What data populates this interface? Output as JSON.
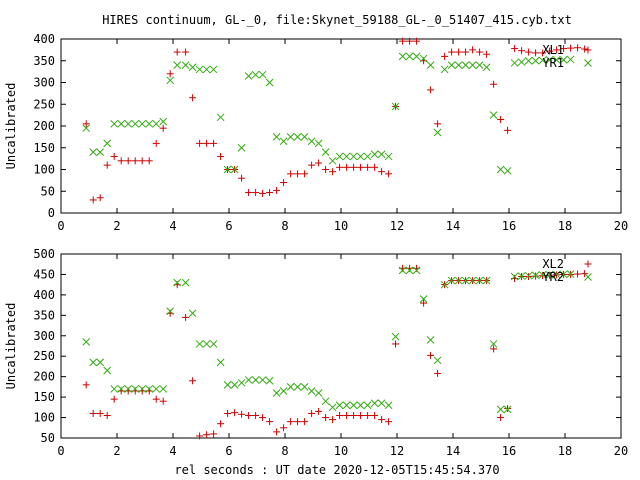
{
  "title": "HIRES continuum, GL-_0, file:Skynet_59188_GL-_0_51407_415.cyb.txt",
  "xlabel": "rel seconds : UT date 2020-12-05T15:45:54.370",
  "colors": {
    "XL": "#cc0000",
    "YR": "#33aa11"
  },
  "chart_data": [
    {
      "type": "scatter",
      "ylabel": "Uncalibrated",
      "xlim": [
        0,
        20
      ],
      "ylim": [
        0,
        400
      ],
      "xticks": [
        0,
        2,
        4,
        6,
        8,
        10,
        12,
        14,
        16,
        18,
        20
      ],
      "yticks": [
        0,
        50,
        100,
        150,
        200,
        250,
        300,
        350,
        400
      ],
      "grid": false,
      "legend": "top-right",
      "series": [
        {
          "name": "XL1",
          "marker": "plus",
          "color": "#cc0000",
          "x": [
            0.9,
            1.15,
            1.4,
            1.65,
            1.9,
            2.15,
            2.4,
            2.65,
            2.9,
            3.15,
            3.4,
            3.65,
            3.9,
            4.15,
            4.45,
            4.7,
            4.95,
            5.2,
            5.45,
            5.7,
            5.95,
            6.2,
            6.45,
            6.7,
            6.95,
            7.2,
            7.45,
            7.7,
            7.95,
            8.2,
            8.45,
            8.7,
            8.95,
            9.2,
            9.45,
            9.7,
            9.95,
            10.2,
            10.45,
            10.7,
            10.95,
            11.2,
            11.45,
            11.7,
            11.95,
            12.2,
            12.45,
            12.7,
            12.95,
            13.2,
            13.45,
            13.7,
            13.95,
            14.2,
            14.45,
            14.7,
            14.95,
            15.2,
            15.45,
            15.7,
            15.95,
            16.2,
            16.45,
            16.7,
            16.95,
            17.2,
            17.45,
            17.7,
            17.95,
            18.2,
            18.45,
            18.7
          ],
          "y": [
            205,
            30,
            35,
            110,
            130,
            120,
            120,
            120,
            120,
            120,
            160,
            195,
            320,
            370,
            370,
            265,
            160,
            160,
            160,
            130,
            100,
            100,
            80,
            47,
            47,
            45,
            47,
            52,
            70,
            90,
            90,
            90,
            110,
            115,
            100,
            95,
            105,
            105,
            105,
            105,
            105,
            105,
            95,
            90,
            245,
            395,
            395,
            395,
            350,
            283,
            205,
            360,
            370,
            370,
            370,
            375,
            370,
            365,
            296,
            215,
            190,
            378,
            373,
            370,
            368,
            368,
            372,
            375,
            378,
            379,
            380,
            377
          ]
        },
        {
          "name": "YR1",
          "marker": "cross",
          "color": "#33aa11",
          "x": [
            0.9,
            1.15,
            1.4,
            1.65,
            1.9,
            2.15,
            2.4,
            2.65,
            2.9,
            3.15,
            3.4,
            3.65,
            3.9,
            4.15,
            4.45,
            4.7,
            4.95,
            5.2,
            5.45,
            5.7,
            5.95,
            6.2,
            6.45,
            6.7,
            6.95,
            7.2,
            7.45,
            7.7,
            7.95,
            8.2,
            8.45,
            8.7,
            8.95,
            9.2,
            9.45,
            9.7,
            9.95,
            10.2,
            10.45,
            10.7,
            10.95,
            11.2,
            11.45,
            11.7,
            11.95,
            12.2,
            12.45,
            12.7,
            12.95,
            13.2,
            13.45,
            13.7,
            13.95,
            14.2,
            14.45,
            14.7,
            14.95,
            15.2,
            15.45,
            15.7,
            15.95,
            16.2,
            16.45,
            16.7,
            16.95,
            17.2,
            17.45,
            17.7,
            17.95,
            18.2
          ],
          "y": [
            195,
            140,
            140,
            160,
            205,
            205,
            205,
            205,
            205,
            205,
            205,
            210,
            305,
            340,
            340,
            335,
            330,
            330,
            330,
            220,
            100,
            100,
            150,
            315,
            318,
            318,
            300,
            175,
            165,
            175,
            175,
            175,
            165,
            160,
            140,
            120,
            130,
            130,
            130,
            130,
            130,
            135,
            135,
            130,
            245,
            360,
            360,
            360,
            355,
            340,
            185,
            330,
            340,
            340,
            340,
            340,
            340,
            335,
            225,
            100,
            97,
            345,
            347,
            350,
            350,
            351,
            352,
            352,
            352,
            353
          ]
        }
      ]
    },
    {
      "type": "scatter",
      "ylabel": "Uncalibrated",
      "xlim": [
        0,
        20
      ],
      "ylim": [
        50,
        500
      ],
      "xticks": [
        0,
        2,
        4,
        6,
        8,
        10,
        12,
        14,
        16,
        18,
        20
      ],
      "yticks": [
        50,
        100,
        150,
        200,
        250,
        300,
        350,
        400,
        450,
        500
      ],
      "grid": false,
      "legend": "top-right",
      "series": [
        {
          "name": "XL2",
          "marker": "plus",
          "color": "#cc0000",
          "x": [
            0.9,
            1.15,
            1.4,
            1.65,
            1.9,
            2.15,
            2.4,
            2.65,
            2.9,
            3.15,
            3.4,
            3.65,
            3.9,
            4.15,
            4.45,
            4.7,
            4.95,
            5.2,
            5.45,
            5.7,
            5.95,
            6.2,
            6.45,
            6.7,
            6.95,
            7.2,
            7.45,
            7.7,
            7.95,
            8.2,
            8.45,
            8.7,
            8.95,
            9.2,
            9.45,
            9.7,
            9.95,
            10.2,
            10.45,
            10.7,
            10.95,
            11.2,
            11.45,
            11.7,
            11.95,
            12.2,
            12.45,
            12.7,
            12.95,
            13.2,
            13.45,
            13.7,
            13.95,
            14.2,
            14.45,
            14.7,
            14.95,
            15.2,
            15.45,
            15.7,
            15.95,
            16.2,
            16.45,
            16.7,
            16.95,
            17.2,
            17.45,
            17.7,
            17.95,
            18.2,
            18.45,
            18.7
          ],
          "y": [
            180,
            110,
            110,
            105,
            145,
            165,
            165,
            165,
            165,
            165,
            145,
            140,
            355,
            425,
            345,
            190,
            55,
            58,
            60,
            85,
            110,
            112,
            108,
            105,
            105,
            100,
            90,
            65,
            75,
            90,
            90,
            90,
            110,
            115,
            100,
            95,
            105,
            105,
            105,
            105,
            105,
            105,
            95,
            90,
            280,
            465,
            465,
            465,
            380,
            252,
            208,
            425,
            435,
            435,
            435,
            435,
            435,
            435,
            268,
            100,
            122,
            440,
            445,
            445,
            446,
            447,
            448,
            449,
            450,
            450,
            451,
            452
          ]
        },
        {
          "name": "YR2",
          "marker": "cross",
          "color": "#33aa11",
          "x": [
            0.9,
            1.15,
            1.4,
            1.65,
            1.9,
            2.15,
            2.4,
            2.65,
            2.9,
            3.15,
            3.4,
            3.65,
            3.9,
            4.15,
            4.45,
            4.7,
            4.95,
            5.2,
            5.45,
            5.7,
            5.95,
            6.2,
            6.45,
            6.7,
            6.95,
            7.2,
            7.45,
            7.7,
            7.95,
            8.2,
            8.45,
            8.7,
            8.95,
            9.2,
            9.45,
            9.7,
            9.95,
            10.2,
            10.45,
            10.7,
            10.95,
            11.2,
            11.45,
            11.7,
            11.95,
            12.2,
            12.45,
            12.7,
            12.95,
            13.2,
            13.45,
            13.7,
            13.95,
            14.2,
            14.45,
            14.7,
            14.95,
            15.2,
            15.45,
            15.7,
            15.95,
            16.2,
            16.45,
            16.7,
            16.95,
            17.2,
            17.45,
            17.7,
            17.95,
            18.2
          ],
          "y": [
            285,
            235,
            235,
            215,
            170,
            170,
            170,
            170,
            170,
            170,
            170,
            170,
            360,
            430,
            430,
            355,
            280,
            280,
            280,
            235,
            180,
            180,
            185,
            192,
            192,
            192,
            190,
            160,
            165,
            175,
            175,
            175,
            165,
            160,
            140,
            125,
            130,
            130,
            130,
            130,
            130,
            135,
            135,
            130,
            298,
            460,
            460,
            460,
            390,
            290,
            240,
            425,
            435,
            435,
            435,
            435,
            435,
            435,
            280,
            120,
            120,
            445,
            446,
            447,
            448,
            449,
            449,
            450,
            450,
            451
          ]
        }
      ]
    }
  ]
}
